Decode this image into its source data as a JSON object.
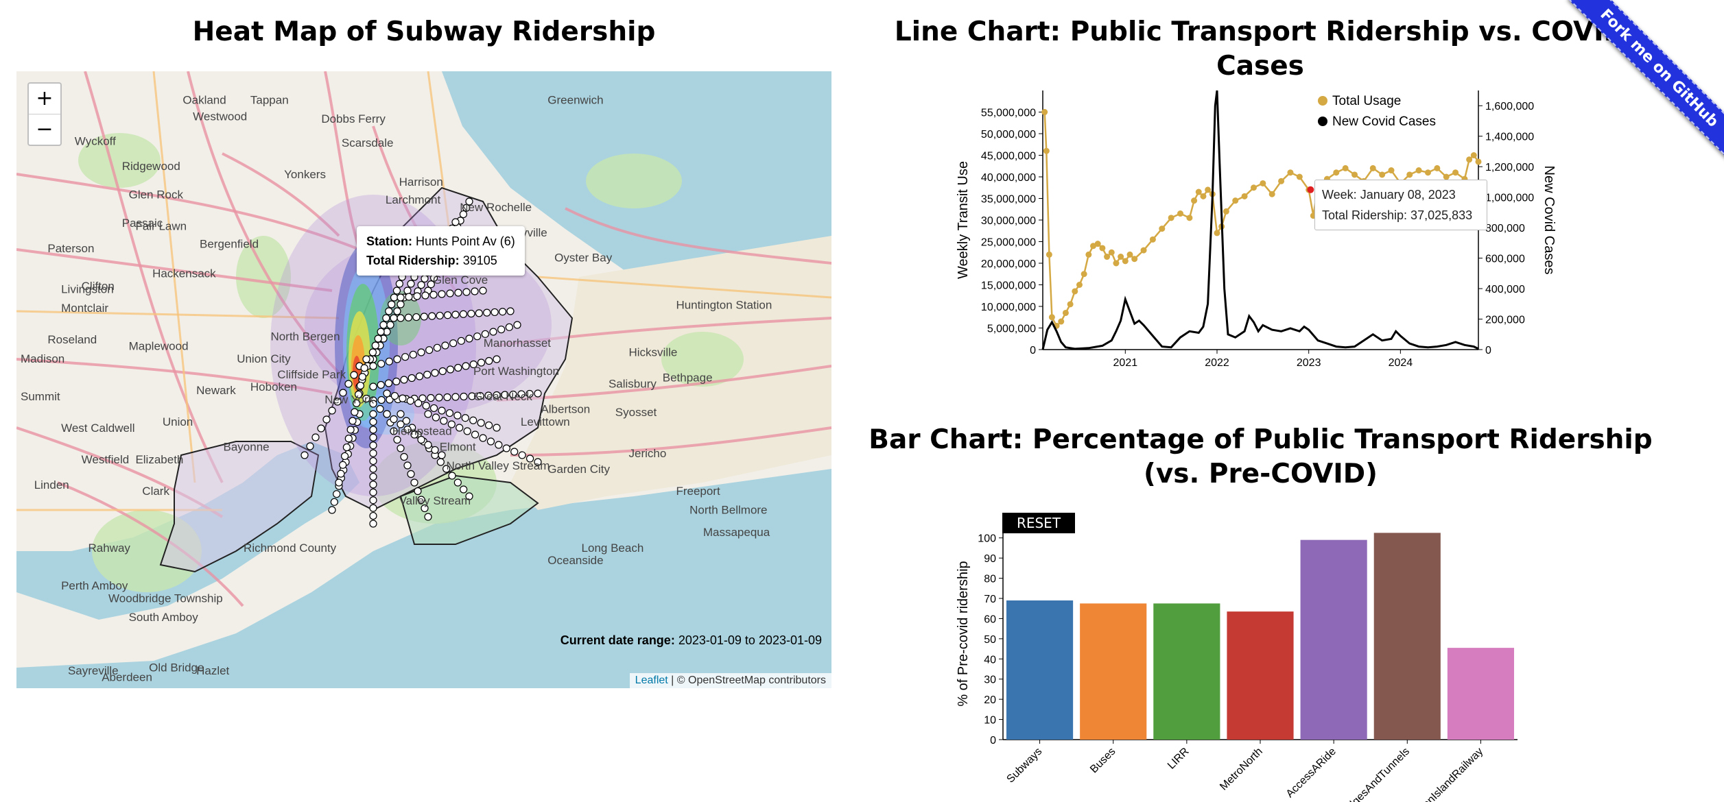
{
  "map_section": {
    "title": "Heat Map of Subway Ridership",
    "zoom_in": "+",
    "zoom_out": "−",
    "tooltip": {
      "station_label": "Station:",
      "station_value": "Hunts Point Av (6)",
      "ridership_label": "Total Ridership:",
      "ridership_value": "39105"
    },
    "date_range": {
      "label": "Current date range:",
      "value": "2023-01-09 to 2023-01-09"
    },
    "attribution": {
      "link": "Leaflet",
      "text": " | © OpenStreetMap contributors"
    },
    "place_labels": [
      "Oakland",
      "Wyckoff",
      "Ridgewood",
      "Glen Rock",
      "Fair Lawn",
      "Paterson",
      "Clifton",
      "Passaic",
      "Hackensack",
      "Bergenfield",
      "Tappan",
      "Dobbs Ferry",
      "Westwood",
      "Yonkers",
      "Scarsdale",
      "Harrison",
      "Larchmont",
      "New Rochelle",
      "Greenwich",
      "Bayville",
      "Oyster Bay",
      "Glen Cove",
      "Huntington Station",
      "Manorhasset",
      "Port Washington",
      "Great Neck",
      "Albertson",
      "Syosset",
      "Jericho",
      "Hicksville",
      "Bethpage",
      "Salisbury",
      "Levittown",
      "Garden City",
      "Hempstead",
      "Elmont",
      "North Valley Stream",
      "Valley Stream",
      "Oceanside",
      "Freeport",
      "North Bellmore",
      "Massapequa",
      "Long Beach",
      "Newark",
      "Union City",
      "Hoboken",
      "Cliffside Park",
      "North Bergen",
      "Montclair",
      "West Caldwell",
      "Livingston",
      "Maplewood",
      "Union",
      "Elizabeth",
      "Westfield",
      "Clark",
      "Linden",
      "Bayonne",
      "Rahway",
      "Woodbridge Township",
      "Perth Amboy",
      "South Amboy",
      "Sayreville",
      "Old Bridge",
      "Hazlet",
      "Aberdeen",
      "Summit",
      "Madison",
      "Roseland",
      "Richmond County",
      "New York"
    ],
    "heat_colors": [
      "#3b4cc0",
      "#7ec8ff",
      "#5ed45a",
      "#f5e642",
      "#ff9a2e",
      "#e8432d",
      "#b18cd9"
    ]
  },
  "line_section": {
    "title": "Line Chart: Public Transport Ridership vs. COVID Cases",
    "tooltip": {
      "week": "Week: January 08, 2023",
      "ridership": "Total Ridership: 37,025,833"
    }
  },
  "bar_section": {
    "title": "Bar Chart: Percentage of Public Transport Ridership (vs. Pre-COVID)",
    "reset_label": "RESET"
  },
  "ribbon_label": "Fork me on GitHub",
  "chart_data": [
    {
      "type": "line",
      "title": "Line Chart: Public Transport Ridership vs. COVID Cases",
      "ylabel": "Weekly Transit Use",
      "y2label": "New Covid Cases",
      "x_ticks": [
        "2021",
        "2022",
        "2023",
        "2024"
      ],
      "x_range": [
        2020.1,
        2024.85
      ],
      "y_range": [
        0,
        60000000
      ],
      "y2_range": [
        0,
        1700000
      ],
      "y_ticks": [
        0,
        5000000,
        10000000,
        15000000,
        20000000,
        25000000,
        30000000,
        35000000,
        40000000,
        45000000,
        50000000,
        55000000
      ],
      "y_tick_labels": [
        "0",
        "5,000,000",
        "10,000,000",
        "15,000,000",
        "20,000,000",
        "25,000,000",
        "30,000,000",
        "35,000,000",
        "40,000,000",
        "45,000,000",
        "50,000,000",
        "55,000,000"
      ],
      "y2_ticks": [
        0,
        200000,
        400000,
        600000,
        800000,
        1000000,
        1200000,
        1400000,
        1600000
      ],
      "y2_tick_labels": [
        "0",
        "200,000",
        "400,000",
        "600,000",
        "800,000",
        "1,000,000",
        "1,200,000",
        "1,400,000",
        "1,600,000"
      ],
      "legend": [
        "Total Usage",
        "New Covid Cases"
      ],
      "legend_placement": "top-right",
      "series": [
        {
          "name": "Total Usage",
          "color": "#d4a843",
          "points": [
            [
              2020.12,
              55000000
            ],
            [
              2020.14,
              46000000
            ],
            [
              2020.17,
              22000000
            ],
            [
              2020.2,
              7500000
            ],
            [
              2020.25,
              5500000
            ],
            [
              2020.3,
              6500000
            ],
            [
              2020.35,
              8500000
            ],
            [
              2020.4,
              10500000
            ],
            [
              2020.45,
              13500000
            ],
            [
              2020.5,
              15000000
            ],
            [
              2020.55,
              17500000
            ],
            [
              2020.6,
              22000000
            ],
            [
              2020.65,
              24000000
            ],
            [
              2020.7,
              24500000
            ],
            [
              2020.75,
              23500000
            ],
            [
              2020.8,
              21500000
            ],
            [
              2020.85,
              22500000
            ],
            [
              2020.9,
              20000000
            ],
            [
              2020.95,
              21500000
            ],
            [
              2021.0,
              20500000
            ],
            [
              2021.05,
              22000000
            ],
            [
              2021.1,
              21000000
            ],
            [
              2021.2,
              23000000
            ],
            [
              2021.3,
              25500000
            ],
            [
              2021.4,
              28000000
            ],
            [
              2021.5,
              30500000
            ],
            [
              2021.6,
              31500000
            ],
            [
              2021.7,
              30500000
            ],
            [
              2021.75,
              34500000
            ],
            [
              2021.8,
              36500000
            ],
            [
              2021.85,
              35500000
            ],
            [
              2021.9,
              37000000
            ],
            [
              2021.95,
              36000000
            ],
            [
              2022.0,
              27000000
            ],
            [
              2022.05,
              28500000
            ],
            [
              2022.1,
              32000000
            ],
            [
              2022.2,
              34500000
            ],
            [
              2022.3,
              35500000
            ],
            [
              2022.4,
              37500000
            ],
            [
              2022.5,
              38500000
            ],
            [
              2022.6,
              36000000
            ],
            [
              2022.7,
              39000000
            ],
            [
              2022.8,
              41000000
            ],
            [
              2022.9,
              40000000
            ],
            [
              2023.0,
              37000000
            ],
            [
              2023.05,
              31000000
            ],
            [
              2023.1,
              38000000
            ],
            [
              2023.2,
              39500000
            ],
            [
              2023.3,
              41000000
            ],
            [
              2023.4,
              42000000
            ],
            [
              2023.5,
              40500000
            ],
            [
              2023.6,
              39000000
            ],
            [
              2023.7,
              42000000
            ],
            [
              2023.8,
              40500000
            ],
            [
              2023.9,
              41500000
            ],
            [
              2024.0,
              38500000
            ],
            [
              2024.1,
              40500000
            ],
            [
              2024.2,
              41500000
            ],
            [
              2024.3,
              41000000
            ],
            [
              2024.4,
              42000000
            ],
            [
              2024.5,
              40000000
            ],
            [
              2024.6,
              41000000
            ],
            [
              2024.7,
              39500000
            ],
            [
              2024.75,
              44000000
            ],
            [
              2024.8,
              45000000
            ],
            [
              2024.85,
              43500000
            ]
          ]
        },
        {
          "name": "New Covid Cases",
          "color": "#000000",
          "points": [
            [
              2020.1,
              0
            ],
            [
              2020.15,
              130000
            ],
            [
              2020.2,
              180000
            ],
            [
              2020.25,
              120000
            ],
            [
              2020.3,
              50000
            ],
            [
              2020.35,
              15000
            ],
            [
              2020.45,
              5000
            ],
            [
              2020.6,
              10000
            ],
            [
              2020.75,
              25000
            ],
            [
              2020.85,
              60000
            ],
            [
              2020.9,
              120000
            ],
            [
              2020.95,
              190000
            ],
            [
              2021.0,
              330000
            ],
            [
              2021.05,
              250000
            ],
            [
              2021.1,
              170000
            ],
            [
              2021.15,
              190000
            ],
            [
              2021.2,
              160000
            ],
            [
              2021.3,
              90000
            ],
            [
              2021.4,
              20000
            ],
            [
              2021.5,
              15000
            ],
            [
              2021.6,
              80000
            ],
            [
              2021.7,
              120000
            ],
            [
              2021.8,
              110000
            ],
            [
              2021.85,
              150000
            ],
            [
              2021.9,
              300000
            ],
            [
              2021.95,
              1000000
            ],
            [
              2021.98,
              1600000
            ],
            [
              2022.0,
              1700000
            ],
            [
              2022.03,
              1200000
            ],
            [
              2022.08,
              400000
            ],
            [
              2022.12,
              100000
            ],
            [
              2022.2,
              80000
            ],
            [
              2022.3,
              120000
            ],
            [
              2022.35,
              220000
            ],
            [
              2022.4,
              180000
            ],
            [
              2022.45,
              120000
            ],
            [
              2022.5,
              160000
            ],
            [
              2022.6,
              130000
            ],
            [
              2022.7,
              120000
            ],
            [
              2022.8,
              140000
            ],
            [
              2022.9,
              120000
            ],
            [
              2022.95,
              150000
            ],
            [
              2023.0,
              130000
            ],
            [
              2023.1,
              60000
            ],
            [
              2023.2,
              40000
            ],
            [
              2023.3,
              20000
            ],
            [
              2023.4,
              15000
            ],
            [
              2023.5,
              20000
            ],
            [
              2023.6,
              60000
            ],
            [
              2023.7,
              100000
            ],
            [
              2023.8,
              60000
            ],
            [
              2023.9,
              70000
            ],
            [
              2023.95,
              120000
            ],
            [
              2024.0,
              90000
            ],
            [
              2024.1,
              40000
            ],
            [
              2024.2,
              20000
            ],
            [
              2024.3,
              15000
            ],
            [
              2024.4,
              20000
            ],
            [
              2024.5,
              30000
            ],
            [
              2024.6,
              50000
            ],
            [
              2024.7,
              30000
            ],
            [
              2024.8,
              20000
            ],
            [
              2024.85,
              5000
            ]
          ]
        }
      ],
      "highlight": {
        "x": 2023.02,
        "y": 37025833,
        "color": "#e02020"
      }
    },
    {
      "type": "bar",
      "title": "Bar Chart: Percentage of Public Transport Ridership (vs. Pre-COVID)",
      "ylabel": "% of Pre-covid ridership",
      "ylim": [
        0,
        105
      ],
      "y_ticks": [
        0,
        10,
        20,
        30,
        40,
        50,
        60,
        70,
        80,
        90,
        100
      ],
      "categories": [
        "Subways",
        "Buses",
        "LIRR",
        "MetroNorth",
        "AccessARide",
        "BridgesAndTunnels",
        "StatenIslandRailway"
      ],
      "values": [
        69,
        67.5,
        67.5,
        63.5,
        99,
        102.5,
        45.5
      ],
      "colors": [
        "#3b75af",
        "#ef8636",
        "#519e3e",
        "#c53a32",
        "#8d69b8",
        "#84584e",
        "#d57dbf"
      ]
    }
  ]
}
